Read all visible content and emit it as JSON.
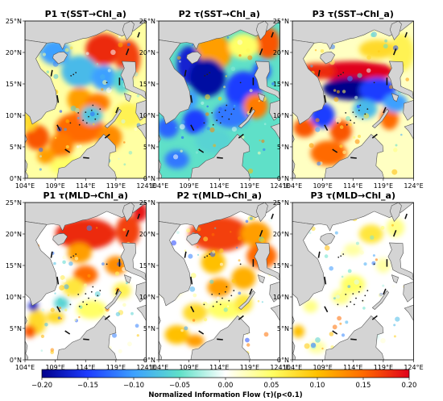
{
  "panels": [
    {
      "title": "P1 τ(SST→Chl_a)",
      "pattern": "p1sst"
    },
    {
      "title": "P2 τ(SST→Chl_a)",
      "pattern": "p2sst"
    },
    {
      "title": "P3 τ(SST→Chl_a)",
      "pattern": "p3sst"
    },
    {
      "title": "P1 τ(MLD→Chl_a)",
      "pattern": "p1mld"
    },
    {
      "title": "P2 τ(MLD→Chl_a)",
      "pattern": "p2mld"
    },
    {
      "title": "P3 τ(MLD→Chl_a)",
      "pattern": "p3mld"
    }
  ],
  "lat_ticks": [
    "0°N",
    "5°N",
    "10°N",
    "15°N",
    "20°N",
    "25°N"
  ],
  "lon_ticks": [
    "104°E",
    "109°E",
    "114°E",
    "119°E",
    "124°E"
  ],
  "colorbar": {
    "label": "Normalized Information Flow (τ)(p<0.1)",
    "min": -0.2,
    "max": 0.2,
    "ticks": [
      "−0.20",
      "−0.15",
      "−0.10",
      "−0.05",
      "0.00",
      "0.05",
      "0.10",
      "0.15",
      "0.20"
    ],
    "colormap": [
      "#00008b",
      "#1e3cff",
      "#3ca0ff",
      "#5fe0c8",
      "#ffffff",
      "#ffff66",
      "#ffc000",
      "#ff6a00",
      "#e0001a"
    ]
  },
  "colors": {
    "land": "#d4d4d4",
    "coast": "#555555"
  }
}
